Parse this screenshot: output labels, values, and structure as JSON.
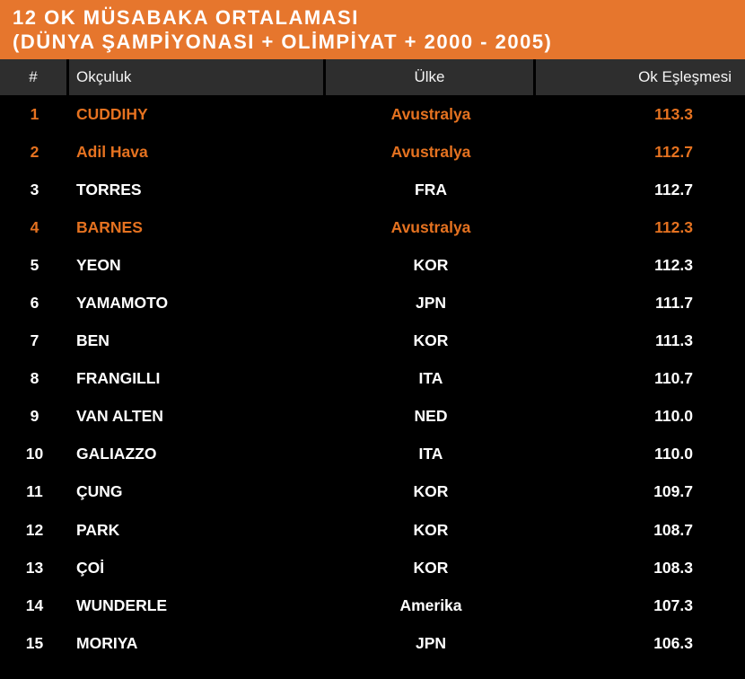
{
  "banner": {
    "line1": "12 OK MÜSABAKA ORTALAMASI",
    "line2": "(DÜNYA ŞAMPİYONASI + OLİMPİYAT + 2000 - 2005)"
  },
  "table": {
    "columns": [
      "#",
      "Okçuluk",
      "Ülke",
      "Ok Eşleşmesi"
    ],
    "rows": [
      {
        "rank": "1",
        "archer": "CUDDIHY",
        "country": "Avustralya",
        "score": "113.3",
        "highlight": true
      },
      {
        "rank": "2",
        "archer": "Adil Hava",
        "country": "Avustralya",
        "score": "112.7",
        "highlight": true
      },
      {
        "rank": "3",
        "archer": "TORRES",
        "country": "FRA",
        "score": "112.7",
        "highlight": false
      },
      {
        "rank": "4",
        "archer": "BARNES",
        "country": "Avustralya",
        "score": "112.3",
        "highlight": true
      },
      {
        "rank": "5",
        "archer": "YEON",
        "country": "KOR",
        "score": "112.3",
        "highlight": false
      },
      {
        "rank": "6",
        "archer": "YAMAMOTO",
        "country": "JPN",
        "score": "111.7",
        "highlight": false
      },
      {
        "rank": "7",
        "archer": "BEN",
        "country": "KOR",
        "score": "111.3",
        "highlight": false
      },
      {
        "rank": "8",
        "archer": "FRANGILLI",
        "country": "ITA",
        "score": "110.7",
        "highlight": false
      },
      {
        "rank": "9",
        "archer": "VAN ALTEN",
        "country": "NED",
        "score": "110.0",
        "highlight": false
      },
      {
        "rank": "10",
        "archer": "GALIAZZO",
        "country": "ITA",
        "score": "110.0",
        "highlight": false
      },
      {
        "rank": "11",
        "archer": "ÇUNG",
        "country": "KOR",
        "score": "109.7",
        "highlight": false
      },
      {
        "rank": "12",
        "archer": "PARK",
        "country": "KOR",
        "score": "108.7",
        "highlight": false
      },
      {
        "rank": "13",
        "archer": "ÇOİ",
        "country": "KOR",
        "score": "108.3",
        "highlight": false
      },
      {
        "rank": "14",
        "archer": "WUNDERLE",
        "country": "Amerika",
        "score": "107.3",
        "highlight": false
      },
      {
        "rank": "15",
        "archer": "MORIYA",
        "country": "JPN",
        "score": "106.3",
        "highlight": false
      }
    ]
  },
  "colors": {
    "banner_bg": "#E6762D",
    "header_bg": "#2E2E2E",
    "row_bg": "#000000",
    "normal_text": "#FFFFFF",
    "highlight_text": "#E57220"
  },
  "chart_data": {
    "type": "table",
    "title": "12 OK MÜSABAKA ORTALAMASI (DÜNYA ŞAMPİYONASI + OLİMPİYAT + 2000 - 2005)",
    "columns": [
      "#",
      "Okçuluk",
      "Ülke",
      "Ok Eşleşmesi"
    ],
    "rows": [
      [
        1,
        "CUDDIHY",
        "Avustralya",
        113.3
      ],
      [
        2,
        "Adil Hava",
        "Avustralya",
        112.7
      ],
      [
        3,
        "TORRES",
        "FRA",
        112.7
      ],
      [
        4,
        "BARNES",
        "Avustralya",
        112.3
      ],
      [
        5,
        "YEON",
        "KOR",
        112.3
      ],
      [
        6,
        "YAMAMOTO",
        "JPN",
        111.7
      ],
      [
        7,
        "BEN",
        "KOR",
        111.3
      ],
      [
        8,
        "FRANGILLI",
        "ITA",
        110.7
      ],
      [
        9,
        "VAN ALTEN",
        "NED",
        110.0
      ],
      [
        10,
        "GALIAZZO",
        "ITA",
        110.0
      ],
      [
        11,
        "ÇUNG",
        "KOR",
        109.7
      ],
      [
        12,
        "PARK",
        "KOR",
        108.7
      ],
      [
        13,
        "ÇOİ",
        "KOR",
        108.3
      ],
      [
        14,
        "WUNDERLE",
        "Amerika",
        107.3
      ],
      [
        15,
        "MORIYA",
        "JPN",
        106.3
      ]
    ],
    "highlighted_rows": [
      1,
      2,
      4
    ],
    "notes": "Rows 1, 2 and 4 (Avustralya) rendered in orange; all others white on black"
  }
}
